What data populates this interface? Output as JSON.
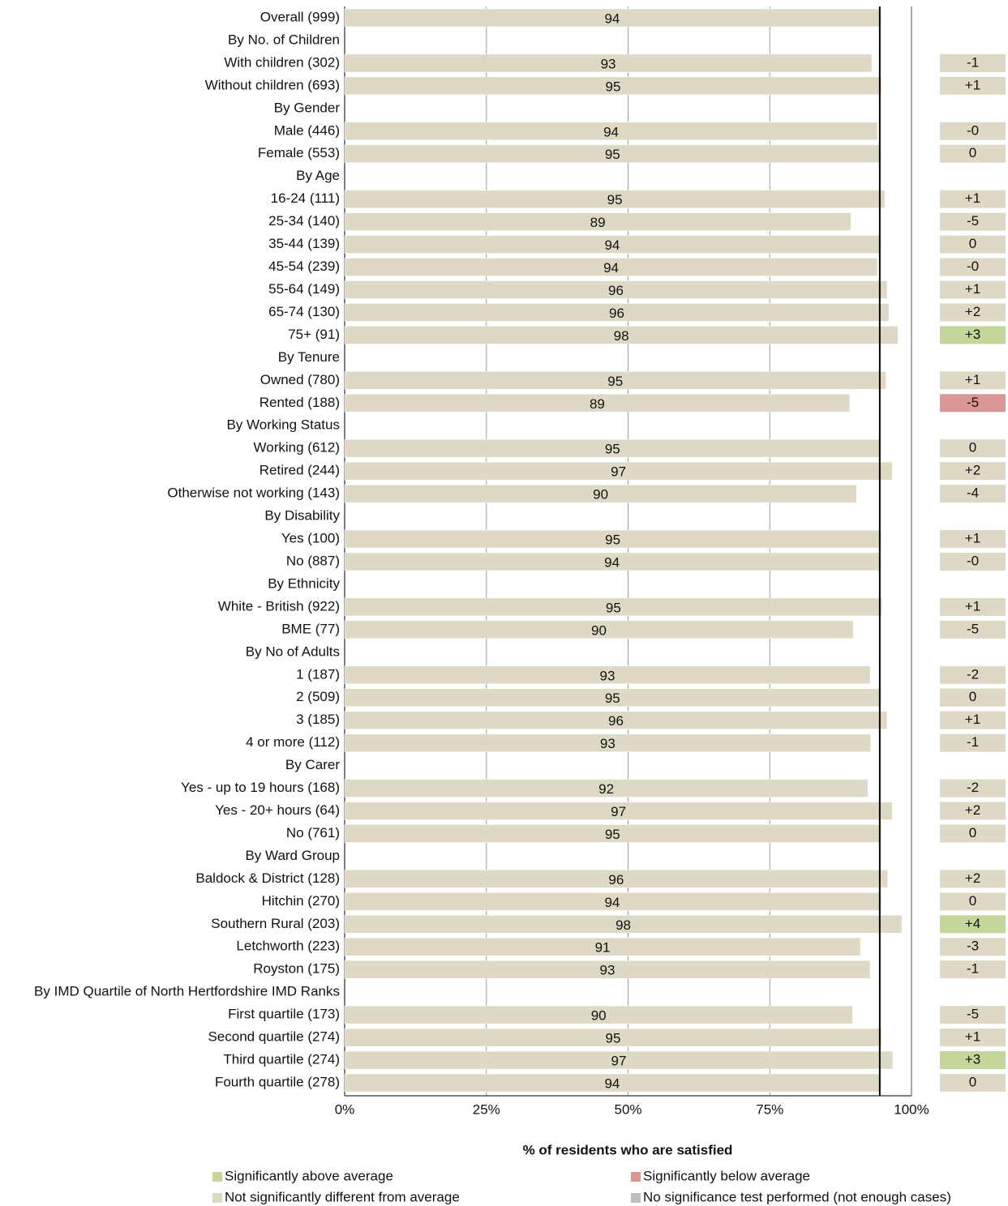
{
  "chart_data": {
    "type": "bar",
    "orientation": "horizontal",
    "xlabel": "% of residents who are satisfied",
    "xlim": [
      0,
      100
    ],
    "xticks": [
      {
        "value": 0,
        "label": "0%"
      },
      {
        "value": 25,
        "label": "25%"
      },
      {
        "value": 50,
        "label": "50%"
      },
      {
        "value": 75,
        "label": "75%"
      },
      {
        "value": 100,
        "label": "100%"
      }
    ],
    "grid": true,
    "color": "#ddd9c4",
    "reference_line": 94.4,
    "categories": [
      "Overall (999)",
      "By No. of Children",
      "With children (302)",
      "Without children (693)",
      "By Gender",
      "Male (446)",
      "Female (553)",
      "By Age",
      "16-24 (111)",
      "25-34 (140)",
      "35-44 (139)",
      "45-54 (239)",
      "55-64 (149)",
      "65-74 (130)",
      "75+ (91)",
      "By Tenure",
      "Owned (780)",
      "Rented (188)",
      "By Working Status",
      "Working (612)",
      "Retired (244)",
      "Otherwise not working (143)",
      "By Disability",
      "Yes (100)",
      "No (887)",
      "By Ethnicity",
      "White - British (922)",
      "BME (77)",
      "By No of Adults",
      "1 (187)",
      "2 (509)",
      "3 (185)",
      "4 or more (112)",
      "By Carer",
      "Yes - up to 19 hours (168)",
      "Yes - 20+ hours (64)",
      "No (761)",
      "By Ward Group",
      "Baldock & District (128)",
      "Hitchin (270)",
      "Southern Rural (203)",
      "Letchworth (223)",
      "Royston (175)",
      "By IMD Quartile of North Hertfordshire IMD Ranks",
      "First quartile (173)",
      "Second quartile (274)",
      "Third quartile (274)",
      "Fourth quartile (278)"
    ],
    "values": [
      94.4,
      null,
      93.0,
      94.7,
      null,
      94.0,
      94.5,
      null,
      95.3,
      89.3,
      94.4,
      94.0,
      95.7,
      96.0,
      97.6,
      null,
      95.5,
      89.1,
      null,
      94.5,
      96.6,
      90.3,
      null,
      94.6,
      94.3,
      null,
      94.8,
      89.7,
      null,
      92.7,
      94.5,
      95.7,
      92.8,
      null,
      92.3,
      96.6,
      94.5,
      null,
      95.8,
      94.4,
      98.3,
      91.0,
      92.7,
      null,
      89.6,
      94.7,
      96.7,
      94.4
    ],
    "value_labels": [
      "94",
      null,
      "93",
      "95",
      null,
      "94",
      "95",
      null,
      "95",
      "89",
      "94",
      "94",
      "96",
      "96",
      "98",
      null,
      "95",
      "89",
      null,
      "95",
      "97",
      "90",
      null,
      "95",
      "94",
      null,
      "95",
      "90",
      null,
      "93",
      "95",
      "96",
      "93",
      null,
      "92",
      "97",
      "95",
      null,
      "96",
      "94",
      "98",
      "91",
      "93",
      null,
      "90",
      "95",
      "97",
      "94"
    ],
    "differences": {
      "values": [
        null,
        null,
        -1,
        1,
        null,
        -0.2,
        0,
        null,
        1,
        -5,
        0,
        -0.2,
        1,
        2,
        3,
        null,
        1,
        -5,
        null,
        0,
        2,
        -4,
        null,
        1,
        -0.2,
        null,
        1,
        -5,
        null,
        -2,
        0,
        1,
        -1,
        null,
        -2,
        2,
        0,
        null,
        2,
        0,
        4,
        -3,
        -1,
        null,
        -5,
        1,
        3,
        0
      ],
      "value_labels": [
        null,
        null,
        "-1",
        "+1",
        null,
        "-0",
        "0",
        null,
        "+1",
        "-5",
        "0",
        "-0",
        "+1",
        "+2",
        "+3",
        null,
        "+1",
        "-5",
        null,
        "0",
        "+2",
        "-4",
        null,
        "+1",
        "-0",
        null,
        "+1",
        "-5",
        null,
        "-2",
        "0",
        "+1",
        "-1",
        null,
        "-2",
        "+2",
        "0",
        null,
        "+2",
        "0",
        "+4",
        "-3",
        "-1",
        null,
        "-5",
        "+1",
        "+3",
        "0"
      ],
      "colors": [
        null,
        null,
        "#ddd9c4",
        "#ddd9c4",
        null,
        "#ddd9c4",
        "#ddd9c4",
        null,
        "#ddd9c4",
        "#ddd9c4",
        "#ddd9c4",
        "#ddd9c4",
        "#ddd9c4",
        "#ddd9c4",
        "#c4d79b",
        null,
        "#ddd9c4",
        "#da9694",
        null,
        "#ddd9c4",
        "#ddd9c4",
        "#ddd9c4",
        null,
        "#ddd9c4",
        "#ddd9c4",
        null,
        "#ddd9c4",
        "#ddd9c4",
        null,
        "#ddd9c4",
        "#ddd9c4",
        "#ddd9c4",
        "#ddd9c4",
        null,
        "#ddd9c4",
        "#ddd9c4",
        "#ddd9c4",
        null,
        "#ddd9c4",
        "#ddd9c4",
        "#c4d79b",
        "#ddd9c4",
        "#ddd9c4",
        null,
        "#ddd9c4",
        "#ddd9c4",
        "#c4d79b",
        "#ddd9c4"
      ]
    },
    "legend": [
      {
        "name": "Significantly above average",
        "color": "#c4d79b"
      },
      {
        "name": "Significantly below average",
        "color": "#da9694"
      },
      {
        "name": "Not significantly different from average",
        "color": "#ddd9c4"
      },
      {
        "name": "No significance test performed (not enough cases)",
        "color": "#bfbfbf"
      }
    ]
  }
}
